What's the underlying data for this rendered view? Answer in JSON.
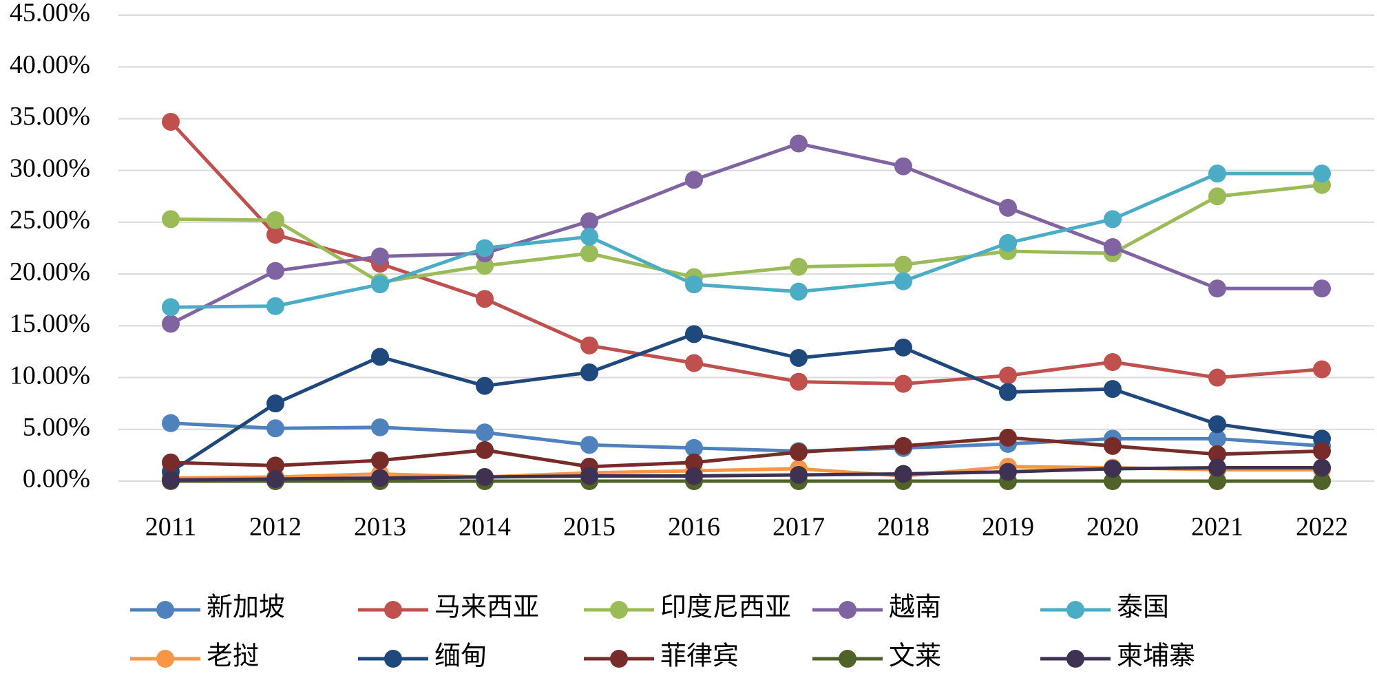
{
  "chart_data": {
    "type": "line",
    "categories": [
      "2011",
      "2012",
      "2013",
      "2014",
      "2015",
      "2016",
      "2017",
      "2018",
      "2019",
      "2020",
      "2021",
      "2022"
    ],
    "series": [
      {
        "name": "新加坡",
        "color": "#4f81bd",
        "values": [
          5.6,
          5.1,
          5.2,
          4.7,
          3.5,
          3.2,
          2.9,
          3.2,
          3.6,
          4.1,
          4.1,
          3.4
        ]
      },
      {
        "name": "马来西亚",
        "color": "#c0504d",
        "values": [
          34.7,
          23.8,
          21.0,
          17.6,
          13.1,
          11.4,
          9.6,
          9.4,
          10.2,
          11.5,
          10.0,
          10.8
        ]
      },
      {
        "name": "印度尼西亚",
        "color": "#9bbb59",
        "values": [
          25.3,
          25.2,
          19.2,
          20.8,
          22.0,
          19.7,
          20.7,
          20.9,
          22.2,
          22.0,
          27.5,
          28.6
        ]
      },
      {
        "name": "越南",
        "color": "#8064a2",
        "values": [
          15.2,
          20.3,
          21.7,
          22.0,
          25.1,
          29.1,
          32.6,
          30.4,
          26.4,
          22.6,
          18.6,
          18.6
        ]
      },
      {
        "name": "泰国",
        "color": "#4bacc6",
        "values": [
          16.8,
          16.9,
          19.0,
          22.5,
          23.6,
          19.0,
          18.3,
          19.3,
          23.0,
          25.3,
          29.7,
          29.7
        ]
      },
      {
        "name": "老挝",
        "color": "#f79646",
        "values": [
          0.3,
          0.4,
          0.7,
          0.4,
          0.8,
          1.0,
          1.2,
          0.5,
          1.4,
          1.3,
          1.1,
          1.1
        ]
      },
      {
        "name": "缅甸",
        "color": "#1f497d",
        "values": [
          0.9,
          7.5,
          12.0,
          9.2,
          10.5,
          14.2,
          11.9,
          12.9,
          8.6,
          8.9,
          5.5,
          4.1
        ]
      },
      {
        "name": "菲律宾",
        "color": "#772c2a",
        "values": [
          1.8,
          1.5,
          2.0,
          3.0,
          1.4,
          1.8,
          2.8,
          3.4,
          4.2,
          3.4,
          2.6,
          2.9
        ]
      },
      {
        "name": "文莱",
        "color": "#4f6228",
        "values": [
          0,
          0,
          0,
          0,
          0,
          0,
          0,
          0,
          0,
          0,
          0,
          0
        ]
      },
      {
        "name": "柬埔寨",
        "color": "#3f3151",
        "values": [
          0.1,
          0.2,
          0.3,
          0.4,
          0.5,
          0.5,
          0.6,
          0.7,
          0.9,
          1.2,
          1.3,
          1.3
        ]
      }
    ],
    "ylim": [
      0,
      45
    ],
    "yticks": [
      {
        "value": 0,
        "label": "0.00%"
      },
      {
        "value": 5,
        "label": "5.00%"
      },
      {
        "value": 10,
        "label": "10.00%"
      },
      {
        "value": 15,
        "label": "15.00%"
      },
      {
        "value": 20,
        "label": "20.00%"
      },
      {
        "value": 25,
        "label": "25.00%"
      },
      {
        "value": 30,
        "label": "30.00%"
      },
      {
        "value": 35,
        "label": "35.00%"
      },
      {
        "value": 40,
        "label": "40.00%"
      },
      {
        "value": 45,
        "label": "45.00%"
      }
    ],
    "grid": true,
    "legend": "bottom"
  }
}
